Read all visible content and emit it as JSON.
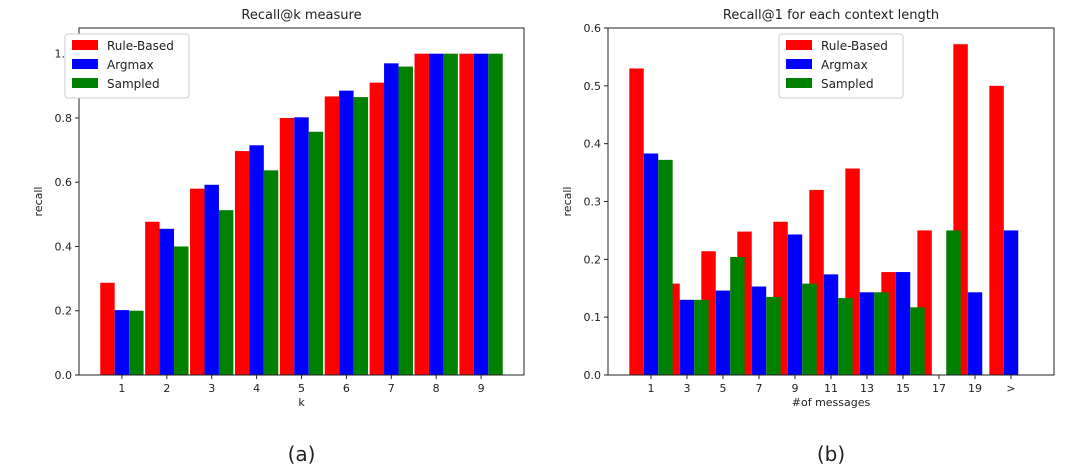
{
  "chart_data": [
    {
      "type": "bar",
      "title": "Recall@k measure",
      "xlabel": "k",
      "ylabel": "recall",
      "ylim": [
        0,
        1.08
      ],
      "yticks": [
        0.0,
        0.2,
        0.4,
        0.6,
        0.8,
        1.0
      ],
      "categories": [
        "1",
        "2",
        "3",
        "4",
        "5",
        "6",
        "7",
        "8",
        "9"
      ],
      "legend_position": "top-left",
      "grid": false,
      "caption": "(a)",
      "series": [
        {
          "name": "Rule-Based",
          "color": "#ff0000",
          "values": [
            0.287,
            0.477,
            0.58,
            0.697,
            0.8,
            0.867,
            0.91,
            1.0,
            1.0
          ]
        },
        {
          "name": "Argmax",
          "color": "#0000ff",
          "values": [
            0.202,
            0.455,
            0.592,
            0.715,
            0.802,
            0.885,
            0.97,
            1.0,
            1.0
          ]
        },
        {
          "name": "Sampled",
          "color": "#008000",
          "values": [
            0.2,
            0.4,
            0.513,
            0.637,
            0.757,
            0.865,
            0.96,
            1.0,
            1.0
          ]
        }
      ]
    },
    {
      "type": "bar",
      "title": "Recall@1 for each context length",
      "xlabel": "#of messages",
      "ylabel": "recall",
      "ylim": [
        0,
        0.6
      ],
      "yticks": [
        0.0,
        0.1,
        0.2,
        0.3,
        0.4,
        0.5,
        0.6
      ],
      "categories": [
        "1",
        "3",
        "5",
        "7",
        "9",
        "11",
        "13",
        "15",
        "17",
        "19",
        ">"
      ],
      "legend_position": "top-center",
      "grid": false,
      "caption": "(b)",
      "series": [
        {
          "name": "Rule-Based",
          "color": "#ff0000",
          "values": [
            0.53,
            0.158,
            0.214,
            0.248,
            0.265,
            0.32,
            0.357,
            0.178,
            0.25,
            0.572,
            0.5
          ]
        },
        {
          "name": "Argmax",
          "color": "#0000ff",
          "values": [
            0.383,
            0.13,
            0.146,
            0.153,
            0.243,
            0.174,
            0.143,
            0.178,
            0.0,
            0.143,
            0.25
          ]
        },
        {
          "name": "Sampled",
          "color": "#008000",
          "values": [
            0.372,
            0.13,
            0.204,
            0.135,
            0.158,
            0.133,
            0.143,
            0.117,
            0.25,
            0.0,
            0.0
          ]
        }
      ]
    }
  ]
}
